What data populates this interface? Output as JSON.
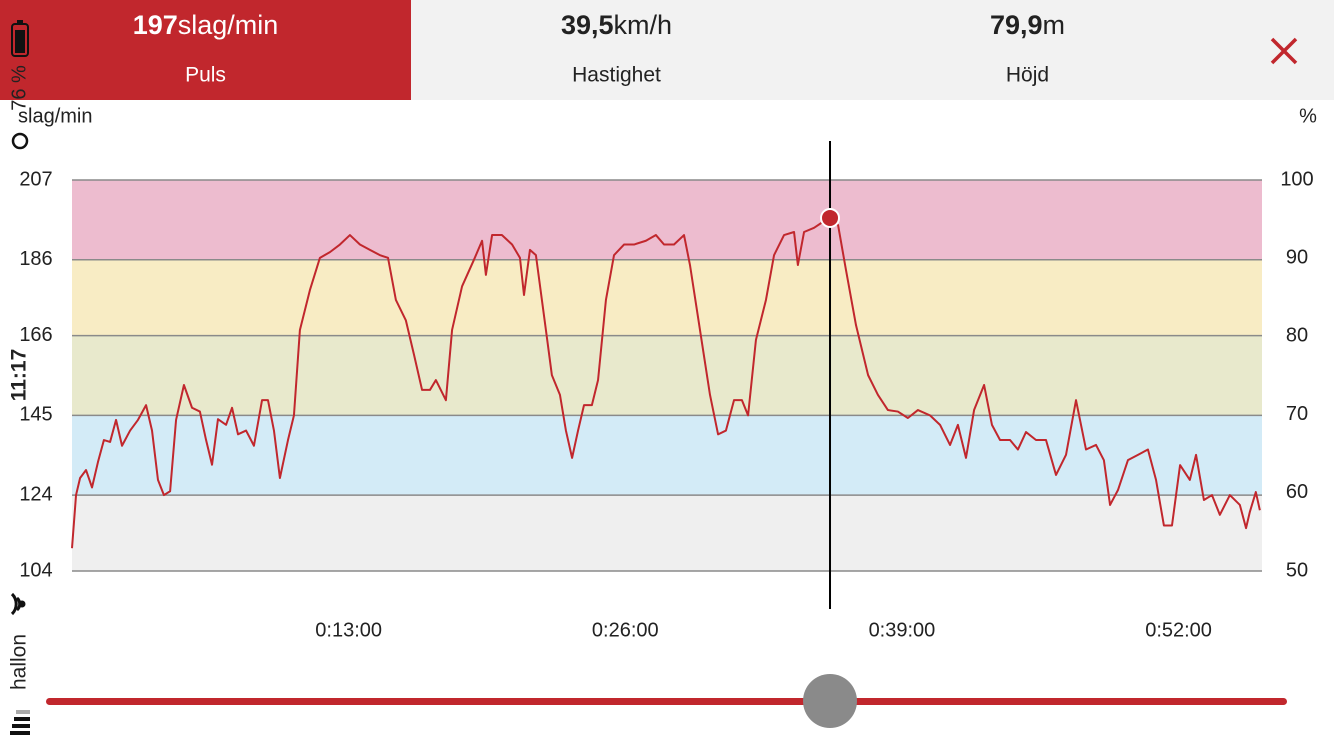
{
  "header": {
    "tabs": [
      {
        "value": "197",
        "unit": "slag/min",
        "label": "Puls",
        "active": true
      },
      {
        "value": "39,5",
        "unit": "km/h",
        "label": "Hastighet",
        "active": false
      },
      {
        "value": "79,9",
        "unit": "m",
        "label": "Höjd",
        "active": false
      }
    ]
  },
  "status_bar": {
    "battery": "76 %",
    "time": "11:17",
    "carrier": "hallon"
  },
  "chart_data": {
    "type": "line",
    "y_label": "slag/min",
    "y2_label": "%",
    "xlim": [
      0,
      55.92
    ],
    "xticks": [
      {
        "value": 13,
        "label": "0:13:00"
      },
      {
        "value": 26,
        "label": "0:26:00"
      },
      {
        "value": 39,
        "label": "0:39:00"
      },
      {
        "value": 52,
        "label": "0:52:00"
      }
    ],
    "ylim": [
      104,
      207
    ],
    "yticks": [
      104,
      124,
      145,
      166,
      186,
      207
    ],
    "y2lim": [
      50,
      100
    ],
    "y2ticks": [
      50,
      60,
      70,
      80,
      90,
      100
    ],
    "zone_colors": [
      "#efefef",
      "#d3ebf7",
      "#e8e9cc",
      "#f8ecc4",
      "#edbccf"
    ],
    "grid": true,
    "x": [
      0,
      0.19,
      0.38,
      0.66,
      0.94,
      1.22,
      1.5,
      1.79,
      2.07,
      2.35,
      2.73,
      3.1,
      3.48,
      3.76,
      4.04,
      4.32,
      4.61,
      4.89,
      5.26,
      5.64,
      6.01,
      6.3,
      6.58,
      6.86,
      7.24,
      7.52,
      7.8,
      8.18,
      8.55,
      8.93,
      9.21,
      9.49,
      9.77,
      10.15,
      10.43,
      10.71,
      11.18,
      11.65,
      12.12,
      12.59,
      13.06,
      13.53,
      14.0,
      14.47,
      14.85,
      15.22,
      15.69,
      16.07,
      16.45,
      16.82,
      17.1,
      17.57,
      17.86,
      18.33,
      18.89,
      19.27,
      19.45,
      19.74,
      20.2,
      20.68,
      21.05,
      21.24,
      21.52,
      21.8,
      22.27,
      22.55,
      22.93,
      23.21,
      23.5,
      23.78,
      24.06,
      24.43,
      24.72,
      25.09,
      25.47,
      25.94,
      26.41,
      26.97,
      27.44,
      27.82,
      28.29,
      28.76,
      29.04,
      29.51,
      29.98,
      30.36,
      30.73,
      31.11,
      31.48,
      31.77,
      32.14,
      32.61,
      32.99,
      33.46,
      33.93,
      34.11,
      34.4,
      34.87,
      35.43,
      35.62,
      36.0,
      36.37,
      36.84,
      37.41,
      37.87,
      38.34,
      38.81,
      39.28,
      39.75,
      40.32,
      40.79,
      41.26,
      41.63,
      42.01,
      42.39,
      42.86,
      43.23,
      43.61,
      44.08,
      44.45,
      44.83,
      45.3,
      45.77,
      46.24,
      46.71,
      47.18,
      47.65,
      48.12,
      48.49,
      48.78,
      49.15,
      49.62,
      50.09,
      50.56,
      50.94,
      51.31,
      51.69,
      52.07,
      52.53,
      52.82,
      53.19,
      53.57,
      53.94,
      54.41,
      54.88,
      55.17,
      55.35,
      55.63,
      55.82
    ],
    "series": [
      {
        "name": "Puls",
        "color": "#c1272d",
        "values": [
          110,
          124,
          128.5,
          130.6,
          126,
          132.7,
          138.5,
          138,
          143.8,
          137,
          141,
          143.8,
          147.7,
          141,
          128,
          124,
          125,
          143.8,
          153,
          147,
          146,
          138.5,
          132,
          144,
          142.5,
          147,
          140,
          141,
          137,
          149,
          149,
          141,
          128.5,
          138.5,
          145,
          167.5,
          178,
          186.5,
          188,
          190,
          192.5,
          190,
          188.6,
          187.2,
          186.5,
          175.4,
          170,
          161,
          151.7,
          151.7,
          154.3,
          149,
          167.5,
          179,
          186,
          191,
          182,
          192.5,
          192.5,
          190,
          186.5,
          176.7,
          188.6,
          187.2,
          167.5,
          155.6,
          150.4,
          141,
          133.8,
          141,
          147.7,
          147.7,
          154.3,
          175.4,
          187.2,
          190,
          190,
          191,
          192.5,
          190,
          190,
          192.5,
          184.6,
          167.5,
          150.4,
          140,
          141,
          149,
          149,
          145,
          164.9,
          175.4,
          187.2,
          192.5,
          193.3,
          184.6,
          193.3,
          194.4,
          196.5,
          197,
          195.1,
          183.3,
          168.8,
          155.6,
          150.4,
          146.4,
          146,
          144.3,
          146.4,
          145,
          142.5,
          137.2,
          142.5,
          133.8,
          146.4,
          153,
          142.5,
          138.5,
          138.5,
          136,
          140.6,
          138.5,
          138.5,
          129.3,
          134.6,
          149,
          136,
          137.2,
          133.2,
          121.4,
          125.3,
          133.2,
          134.6,
          136,
          128,
          116,
          116,
          131.9,
          128,
          134.6,
          122.7,
          124,
          118.8,
          124,
          121.4,
          115.3,
          119.6,
          124.8,
          120
        ]
      }
    ],
    "cursor": {
      "x": 35.62,
      "value": 197
    }
  }
}
